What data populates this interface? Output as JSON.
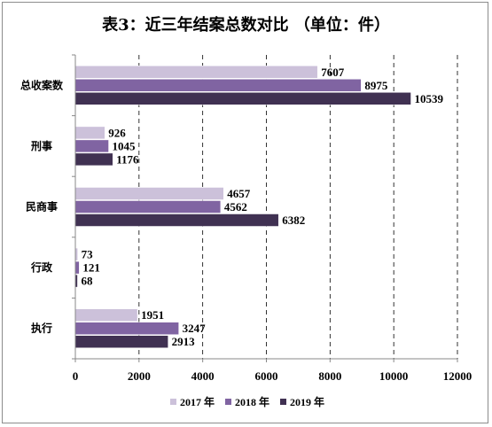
{
  "chart_data": {
    "type": "bar",
    "orientation": "horizontal",
    "title": "表3：近三年结案总数对比 （单位：件）",
    "categories": [
      "总收案数",
      "刑事",
      "民商事",
      "行政",
      "执行"
    ],
    "series": [
      {
        "name": "2017 年",
        "color": "#ccc1da",
        "values": [
          7607,
          926,
          4657,
          73,
          1951
        ]
      },
      {
        "name": "2018 年",
        "color": "#8064a2",
        "values": [
          8975,
          1045,
          4562,
          121,
          3247
        ]
      },
      {
        "name": "2019 年",
        "color": "#403152",
        "values": [
          10539,
          1176,
          6382,
          68,
          2913
        ]
      }
    ],
    "xlim": [
      0,
      12000
    ],
    "xticks": [
      0,
      2000,
      4000,
      6000,
      8000,
      10000,
      12000
    ],
    "grid": true,
    "legend_position": "bottom"
  }
}
